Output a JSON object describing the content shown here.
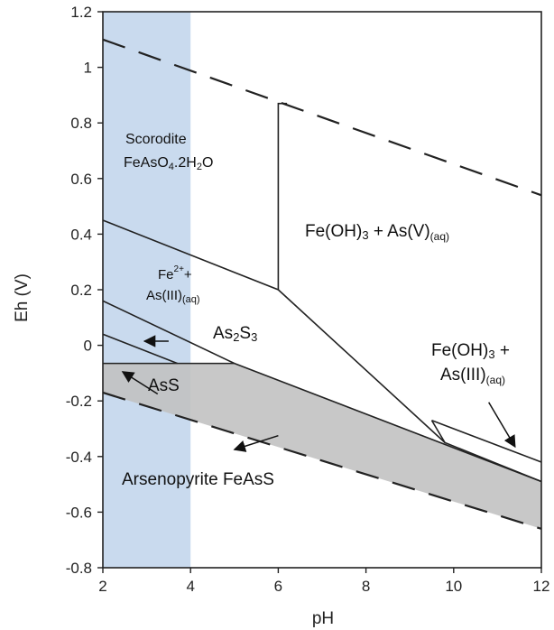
{
  "chart_data": {
    "type": "line",
    "title": "",
    "xlabel": "pH",
    "ylabel": "Eh (V)",
    "xlim": [
      2,
      12
    ],
    "ylim": [
      -0.8,
      1.2
    ],
    "x_ticks": [
      "2",
      "4",
      "6",
      "8",
      "10",
      "12"
    ],
    "y_ticks": [
      "-0.8",
      "-0.6",
      "-0.4",
      "-0.2",
      "0",
      "0.2",
      "0.4",
      "0.6",
      "0.8",
      "1",
      "1.2"
    ],
    "grid": false,
    "colors": {
      "scorodite_band": "#c9daee",
      "arsenopyrite_fill": "#c0c0c0",
      "lines": "#222222"
    },
    "regions": {
      "scorodite_band_x": [
        2,
        4
      ],
      "arsenopyrite_polygon": [
        [
          2,
          -0.065
        ],
        [
          5,
          -0.065
        ],
        [
          12,
          -0.49
        ],
        [
          12,
          -0.66
        ],
        [
          2,
          -0.17
        ]
      ]
    },
    "series": [
      {
        "style": "dashed",
        "x": [
          2,
          12
        ],
        "y": [
          1.1,
          0.54
        ]
      },
      {
        "style": "dashed",
        "x": [
          2,
          12
        ],
        "y": [
          -0.17,
          -0.66
        ]
      },
      {
        "style": "solid",
        "x": [
          2,
          6,
          9.8
        ],
        "y": [
          0.45,
          0.2,
          -0.35
        ]
      },
      {
        "style": "solid",
        "x": [
          6,
          6,
          6.2
        ],
        "y": [
          0.2,
          0.87,
          0.87
        ]
      },
      {
        "style": "solid",
        "x": [
          2,
          5
        ],
        "y": [
          0.16,
          -0.065
        ]
      },
      {
        "style": "solid",
        "x": [
          2,
          3.7
        ],
        "y": [
          0.04,
          -0.065
        ]
      },
      {
        "style": "solid",
        "x": [
          2,
          5
        ],
        "y": [
          -0.065,
          -0.065
        ]
      },
      {
        "style": "solid",
        "x": [
          5,
          12
        ],
        "y": [
          -0.065,
          -0.49
        ]
      },
      {
        "style": "solid",
        "x": [
          9.5,
          9.8,
          12
        ],
        "y": [
          -0.27,
          -0.35,
          -0.49
        ]
      },
      {
        "style": "solid",
        "x": [
          9.5,
          12
        ],
        "y": [
          -0.27,
          -0.42
        ]
      }
    ],
    "annotations": {
      "scorodite": "Scorodite",
      "scorodite_formula": "FeAsO4.2H2O",
      "feoh3_asv": "Fe(OH)3 + As(V)(aq)",
      "fe2_asiii_line1": "Fe2++",
      "fe2_asiii_line2": "As(III)(aq)",
      "as2s3": "As2S3",
      "ass": "AsS",
      "feoh3_asiii_line1": "Fe(OH)3 +",
      "feoh3_asiii_line2": "As(III)(aq)",
      "arsenopyrite": "Arsenopyrite FeAsS"
    },
    "arrows": [
      {
        "from": [
          3.5,
          0.015
        ],
        "to": [
          2.95,
          0.015
        ]
      },
      {
        "from": [
          3.25,
          -0.175
        ],
        "to": [
          2.45,
          -0.095
        ]
      },
      {
        "from": [
          6.0,
          -0.325
        ],
        "to": [
          5.0,
          -0.375
        ]
      },
      {
        "from": [
          10.8,
          -0.205
        ],
        "to": [
          11.4,
          -0.365
        ]
      }
    ]
  }
}
